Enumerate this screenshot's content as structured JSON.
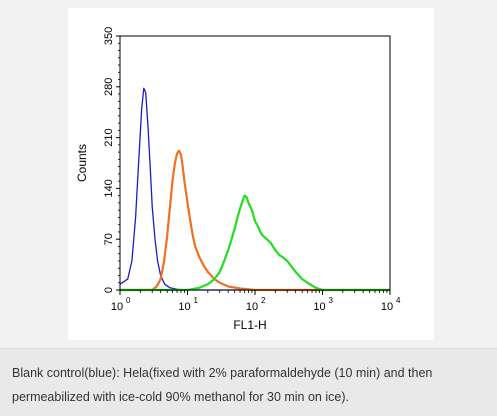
{
  "chart_data": {
    "type": "line",
    "xlabel": "FL1-H",
    "ylabel": "Counts",
    "x_scale": "log",
    "xlim": [
      1,
      10000
    ],
    "ylim": [
      0,
      350
    ],
    "x_ticks": [
      {
        "value": 1,
        "base": "10",
        "exp": "0"
      },
      {
        "value": 10,
        "base": "10",
        "exp": "1"
      },
      {
        "value": 100,
        "base": "10",
        "exp": "2"
      },
      {
        "value": 1000,
        "base": "10",
        "exp": "3"
      },
      {
        "value": 10000,
        "base": "10",
        "exp": "4"
      }
    ],
    "y_ticks": [
      {
        "value": 0,
        "label": "0"
      },
      {
        "value": 70,
        "label": "70"
      },
      {
        "value": 140,
        "label": "140"
      },
      {
        "value": 210,
        "label": "210"
      },
      {
        "value": 280,
        "label": "280"
      },
      {
        "value": 350,
        "label": "350"
      }
    ],
    "grid": false,
    "series": [
      {
        "color": "#1c1cc8",
        "x": [
          1.0,
          1.3,
          1.5,
          1.7,
          1.9,
          2.1,
          2.25,
          2.4,
          2.6,
          2.8,
          3.0,
          3.3,
          3.6,
          4.0,
          4.6,
          5.5,
          7,
          10,
          20,
          100,
          1000,
          10000
        ],
        "y": [
          8,
          15,
          40,
          100,
          180,
          250,
          278,
          272,
          225,
          170,
          115,
          70,
          40,
          20,
          8,
          3,
          1,
          0,
          0,
          0,
          0,
          0
        ]
      },
      {
        "color": "#f07020",
        "x": [
          1,
          3,
          3.5,
          4,
          4.5,
          5,
          5.5,
          6,
          6.5,
          7,
          7.5,
          8,
          8.5,
          9,
          10,
          11,
          12,
          13,
          15,
          17,
          20,
          25,
          30,
          40,
          60,
          100,
          1000,
          10000
        ],
        "y": [
          0,
          0,
          5,
          15,
          40,
          75,
          115,
          150,
          175,
          188,
          192,
          186,
          170,
          150,
          120,
          95,
          75,
          60,
          45,
          35,
          25,
          15,
          10,
          5,
          2,
          0,
          0,
          0
        ]
      },
      {
        "color": "#22dd22",
        "x": [
          1,
          10,
          15,
          20,
          25,
          30,
          35,
          40,
          45,
          50,
          55,
          60,
          65,
          70,
          75,
          80,
          90,
          100,
          110,
          120,
          130,
          150,
          170,
          200,
          230,
          260,
          300,
          350,
          400,
          500,
          600,
          700,
          800,
          1000,
          10000
        ],
        "y": [
          0,
          0,
          3,
          8,
          15,
          25,
          40,
          55,
          70,
          85,
          100,
          112,
          122,
          130,
          128,
          120,
          110,
          95,
          88,
          80,
          75,
          70,
          65,
          55,
          48,
          45,
          40,
          32,
          25,
          15,
          10,
          6,
          3,
          0,
          0
        ]
      }
    ]
  },
  "caption": {
    "line1": "Blank control(blue): Hela(fixed with 2% paraformaldehyde (10 min) and then",
    "line2": "permeabilized with ice-cold 90% methanol for 30 min on ice)."
  }
}
